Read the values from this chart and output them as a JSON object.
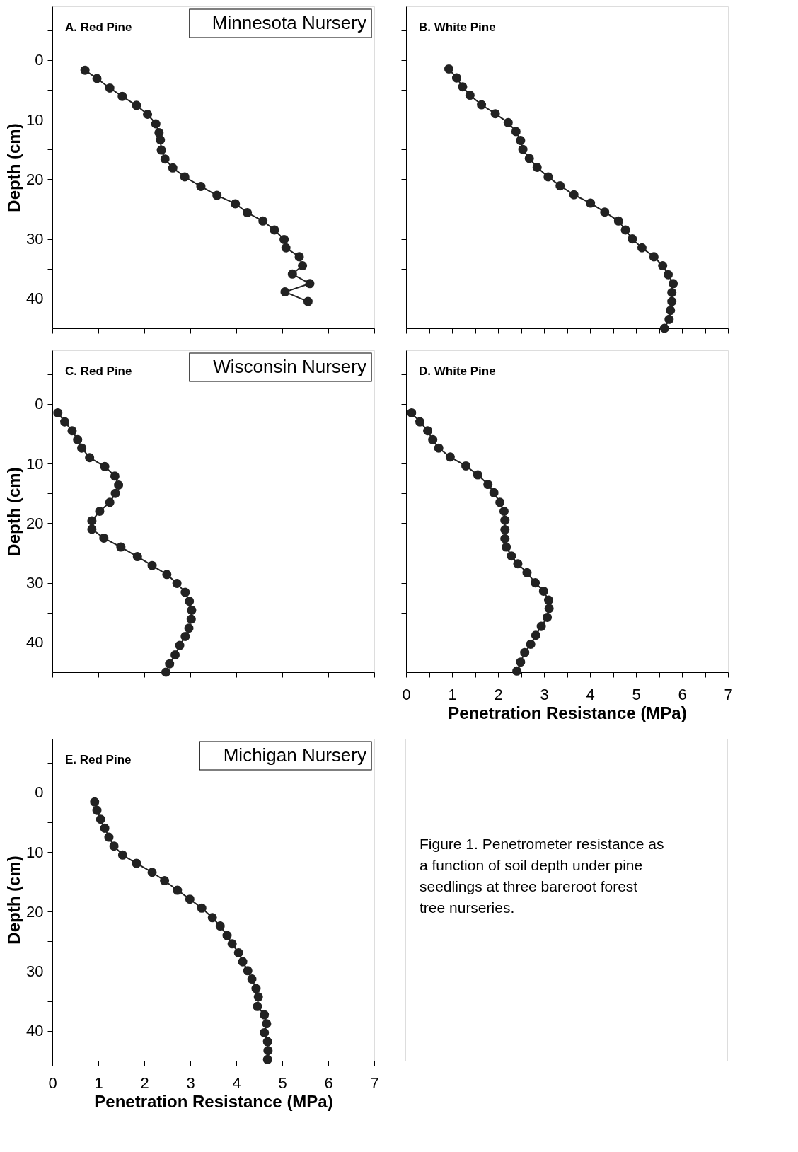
{
  "chart_data": [
    {
      "type": "line",
      "title": "Minnesota Nursery",
      "subtitle": "A. Red Pine",
      "ylabel": "Depth (cm)",
      "marker": "circle",
      "line_style": "solid",
      "tick_labels": "y",
      "xlim": [
        0,
        7
      ],
      "ylim": [
        45,
        -9
      ],
      "xticks": [
        {
          "value": 0,
          "label": null
        },
        {
          "value": 0.5,
          "label": null
        },
        {
          "value": 1,
          "label": null
        },
        {
          "value": 1.5,
          "label": null
        },
        {
          "value": 2,
          "label": null
        },
        {
          "value": 2.5,
          "label": null
        },
        {
          "value": 3,
          "label": null
        },
        {
          "value": 3.5,
          "label": null
        },
        {
          "value": 4,
          "label": null
        },
        {
          "value": 4.5,
          "label": null
        },
        {
          "value": 5,
          "label": null
        },
        {
          "value": 5.5,
          "label": null
        },
        {
          "value": 6,
          "label": null
        },
        {
          "value": 6.5,
          "label": null
        },
        {
          "value": 7,
          "label": null
        }
      ],
      "yticks": [
        {
          "value": -5,
          "label": null
        },
        {
          "value": 0,
          "label": "0"
        },
        {
          "value": 5,
          "label": null
        },
        {
          "value": 10,
          "label": "10"
        },
        {
          "value": 15,
          "label": null
        },
        {
          "value": 20,
          "label": "20"
        },
        {
          "value": 25,
          "label": null
        },
        {
          "value": 30,
          "label": "30"
        },
        {
          "value": 35,
          "label": null
        },
        {
          "value": 40,
          "label": "40"
        }
      ],
      "series": [
        {
          "color": "#222222",
          "x": [
            0.71,
            0.97,
            1.25,
            1.52,
            1.83,
            2.07,
            2.25,
            2.32,
            2.35,
            2.37,
            2.45,
            2.62,
            2.88,
            3.23,
            3.58,
            3.98,
            4.24,
            4.58,
            4.83,
            5.04,
            5.08,
            5.37,
            5.44,
            5.22,
            5.6,
            5.06,
            5.56
          ],
          "values": [
            1.7,
            3.1,
            4.7,
            6.1,
            7.6,
            9.1,
            10.7,
            12.2,
            13.4,
            15.1,
            16.6,
            18.1,
            19.6,
            21.2,
            22.7,
            24.1,
            25.6,
            27.0,
            28.5,
            30.1,
            31.5,
            33.0,
            34.5,
            35.9,
            37.5,
            38.9,
            40.5
          ]
        }
      ]
    },
    {
      "type": "line",
      "subtitle": "B. White Pine",
      "marker": "circle",
      "line_style": "solid",
      "tick_labels": false,
      "xlim": [
        0,
        7
      ],
      "ylim": [
        45,
        -9
      ],
      "xticks": [
        {
          "value": 0,
          "label": null
        },
        {
          "value": 0.5,
          "label": null
        },
        {
          "value": 1,
          "label": null
        },
        {
          "value": 1.5,
          "label": null
        },
        {
          "value": 2,
          "label": null
        },
        {
          "value": 2.5,
          "label": null
        },
        {
          "value": 3,
          "label": null
        },
        {
          "value": 3.5,
          "label": null
        },
        {
          "value": 4,
          "label": null
        },
        {
          "value": 4.5,
          "label": null
        },
        {
          "value": 5,
          "label": null
        },
        {
          "value": 5.5,
          "label": null
        },
        {
          "value": 6,
          "label": null
        },
        {
          "value": 6.5,
          "label": null
        },
        {
          "value": 7,
          "label": null
        }
      ],
      "yticks": [
        {
          "value": -5,
          "label": null
        },
        {
          "value": 0,
          "label": null
        },
        {
          "value": 5,
          "label": null
        },
        {
          "value": 10,
          "label": null
        },
        {
          "value": 15,
          "label": null
        },
        {
          "value": 20,
          "label": null
        },
        {
          "value": 25,
          "label": null
        },
        {
          "value": 30,
          "label": null
        },
        {
          "value": 35,
          "label": null
        },
        {
          "value": 40,
          "label": null
        }
      ],
      "series": [
        {
          "color": "#222222",
          "x": [
            0.93,
            1.1,
            1.23,
            1.39,
            1.64,
            1.94,
            2.22,
            2.39,
            2.49,
            2.54,
            2.68,
            2.85,
            3.09,
            3.35,
            3.65,
            4.01,
            4.32,
            4.62,
            4.77,
            4.92,
            5.13,
            5.39,
            5.58,
            5.7,
            5.81,
            5.78,
            5.78,
            5.75,
            5.72,
            5.62
          ],
          "values": [
            1.5,
            3.0,
            4.5,
            5.9,
            7.5,
            9.0,
            10.5,
            12.0,
            13.5,
            15.0,
            16.5,
            18.0,
            19.6,
            21.1,
            22.6,
            24.0,
            25.5,
            27.0,
            28.5,
            30.0,
            31.5,
            33.0,
            34.5,
            36.0,
            37.5,
            39.0,
            40.5,
            42.0,
            43.5,
            45.0
          ]
        }
      ]
    },
    {
      "type": "line",
      "title": "Wisconsin Nursery",
      "subtitle": "C. Red Pine",
      "ylabel": "Depth (cm)",
      "marker": "circle",
      "line_style": "solid",
      "tick_labels": "y",
      "xlim": [
        0,
        7
      ],
      "ylim": [
        45,
        -9
      ],
      "xticks": [
        {
          "value": 0,
          "label": null
        },
        {
          "value": 0.5,
          "label": null
        },
        {
          "value": 1,
          "label": null
        },
        {
          "value": 1.5,
          "label": null
        },
        {
          "value": 2,
          "label": null
        },
        {
          "value": 2.5,
          "label": null
        },
        {
          "value": 3,
          "label": null
        },
        {
          "value": 3.5,
          "label": null
        },
        {
          "value": 4,
          "label": null
        },
        {
          "value": 4.5,
          "label": null
        },
        {
          "value": 5,
          "label": null
        },
        {
          "value": 5.5,
          "label": null
        },
        {
          "value": 6,
          "label": null
        },
        {
          "value": 6.5,
          "label": null
        },
        {
          "value": 7,
          "label": null
        }
      ],
      "yticks": [
        {
          "value": -5,
          "label": null
        },
        {
          "value": 0,
          "label": "0"
        },
        {
          "value": 5,
          "label": null
        },
        {
          "value": 10,
          "label": "10"
        },
        {
          "value": 15,
          "label": null
        },
        {
          "value": 20,
          "label": "20"
        },
        {
          "value": 25,
          "label": null
        },
        {
          "value": 30,
          "label": "30"
        },
        {
          "value": 35,
          "label": null
        },
        {
          "value": 40,
          "label": "40"
        }
      ],
      "series": [
        {
          "color": "#222222",
          "x": [
            0.12,
            0.27,
            0.43,
            0.55,
            0.64,
            0.81,
            1.14,
            1.36,
            1.44,
            1.37,
            1.25,
            1.03,
            0.86,
            0.86,
            1.12,
            1.49,
            1.85,
            2.17,
            2.49,
            2.71,
            2.89,
            2.98,
            3.03,
            3.02,
            2.97,
            2.89,
            2.77,
            2.67,
            2.55,
            2.47
          ],
          "values": [
            1.5,
            3.0,
            4.5,
            6.0,
            7.4,
            9.0,
            10.5,
            12.1,
            13.6,
            15.0,
            16.5,
            18.0,
            19.6,
            21.0,
            22.5,
            24.0,
            25.6,
            27.1,
            28.6,
            30.1,
            31.6,
            33.1,
            34.6,
            36.1,
            37.6,
            39.0,
            40.5,
            42.1,
            43.6,
            45.0
          ]
        }
      ]
    },
    {
      "type": "line",
      "subtitle": "D. White Pine",
      "xlabel": "Penetration Resistance (MPa)",
      "marker": "circle",
      "line_style": "solid",
      "tick_labels": "x",
      "xlim": [
        0,
        7
      ],
      "ylim": [
        45,
        -9
      ],
      "xticks": [
        {
          "value": 0,
          "label": "0"
        },
        {
          "value": 0.5,
          "label": null
        },
        {
          "value": 1,
          "label": "1"
        },
        {
          "value": 1.5,
          "label": null
        },
        {
          "value": 2,
          "label": "2"
        },
        {
          "value": 2.5,
          "label": null
        },
        {
          "value": 3,
          "label": "3"
        },
        {
          "value": 3.5,
          "label": null
        },
        {
          "value": 4,
          "label": "4"
        },
        {
          "value": 4.5,
          "label": null
        },
        {
          "value": 5,
          "label": "5"
        },
        {
          "value": 5.5,
          "label": null
        },
        {
          "value": 6,
          "label": "6"
        },
        {
          "value": 6.5,
          "label": null
        },
        {
          "value": 7,
          "label": "7"
        }
      ],
      "yticks": [
        {
          "value": -5,
          "label": null
        },
        {
          "value": 0,
          "label": null
        },
        {
          "value": 5,
          "label": null
        },
        {
          "value": 10,
          "label": null
        },
        {
          "value": 15,
          "label": null
        },
        {
          "value": 20,
          "label": null
        },
        {
          "value": 25,
          "label": null
        },
        {
          "value": 30,
          "label": null
        },
        {
          "value": 35,
          "label": null
        },
        {
          "value": 40,
          "label": null
        }
      ],
      "series": [
        {
          "color": "#222222",
          "x": [
            0.12,
            0.3,
            0.47,
            0.58,
            0.71,
            0.96,
            1.3,
            1.56,
            1.78,
            1.91,
            2.04,
            2.13,
            2.15,
            2.15,
            2.15,
            2.18,
            2.29,
            2.43,
            2.63,
            2.81,
            2.99,
            3.1,
            3.11,
            3.07,
            2.94,
            2.82,
            2.71,
            2.58,
            2.49,
            2.41
          ],
          "values": [
            1.5,
            3.0,
            4.5,
            6.0,
            7.4,
            8.9,
            10.4,
            11.9,
            13.5,
            14.9,
            16.5,
            18.0,
            19.5,
            21.1,
            22.6,
            24.0,
            25.5,
            26.8,
            28.3,
            30.0,
            31.4,
            32.9,
            34.3,
            35.8,
            37.3,
            38.8,
            40.3,
            41.7,
            43.3,
            44.8
          ]
        }
      ]
    },
    {
      "type": "line",
      "title": "Michigan Nursery",
      "subtitle": "E. Red Pine",
      "xlabel": "Penetration Resistance (MPa)",
      "ylabel": "Depth (cm)",
      "marker": "circle",
      "line_style": "solid",
      "annotations": [
        "Figure 1. Penetrometer resistance as a function of soil depth under pine seedlings at three bareroot forest tree nurseries."
      ],
      "xlim": [
        0,
        7
      ],
      "ylim": [
        45,
        -9
      ],
      "xticks": [
        {
          "value": 0,
          "label": "0"
        },
        {
          "value": 0.5,
          "label": null
        },
        {
          "value": 1,
          "label": "1"
        },
        {
          "value": 1.5,
          "label": null
        },
        {
          "value": 2,
          "label": "2"
        },
        {
          "value": 2.5,
          "label": null
        },
        {
          "value": 3,
          "label": "3"
        },
        {
          "value": 3.5,
          "label": null
        },
        {
          "value": 4,
          "label": "4"
        },
        {
          "value": 4.5,
          "label": null
        },
        {
          "value": 5,
          "label": "5"
        },
        {
          "value": 5.5,
          "label": null
        },
        {
          "value": 6,
          "label": "6"
        },
        {
          "value": 6.5,
          "label": null
        },
        {
          "value": 7,
          "label": "7"
        }
      ],
      "yticks": [
        {
          "value": -5,
          "label": null
        },
        {
          "value": 0,
          "label": "0"
        },
        {
          "value": 5,
          "label": null
        },
        {
          "value": 10,
          "label": "10"
        },
        {
          "value": 15,
          "label": null
        },
        {
          "value": 20,
          "label": "20"
        },
        {
          "value": 25,
          "label": null
        },
        {
          "value": 30,
          "label": "30"
        },
        {
          "value": 35,
          "label": null
        },
        {
          "value": 40,
          "label": "40"
        }
      ],
      "series": [
        {
          "color": "#222222",
          "x": [
            0.92,
            0.97,
            1.05,
            1.14,
            1.23,
            1.34,
            1.53,
            1.83,
            2.17,
            2.44,
            2.72,
            2.99,
            3.25,
            3.48,
            3.65,
            3.8,
            3.91,
            4.05,
            4.14,
            4.25,
            4.34,
            4.43,
            4.48,
            4.46,
            4.61,
            4.66,
            4.61,
            4.68,
            4.69,
            4.68
          ],
          "values": [
            1.6,
            3.0,
            4.5,
            6.0,
            7.5,
            9.0,
            10.5,
            11.9,
            13.4,
            14.8,
            16.4,
            17.9,
            19.4,
            21.0,
            22.4,
            24.0,
            25.4,
            26.9,
            28.4,
            29.9,
            31.3,
            32.9,
            34.3,
            35.9,
            37.3,
            38.8,
            40.3,
            41.8,
            43.3,
            44.8
          ]
        }
      ]
    }
  ]
}
